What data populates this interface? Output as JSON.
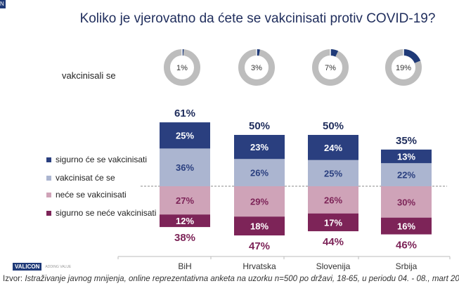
{
  "logo_fragment": "N",
  "chart_data": {
    "type": "bar",
    "title": "Koliko je vjerovatno da ćete se vakcinisati protiv COVID-19?",
    "categories": [
      "BiH",
      "Hrvatska",
      "Slovenija",
      "Srbija"
    ],
    "positive_totals": [
      61,
      50,
      50,
      35
    ],
    "negative_totals": [
      38,
      47,
      44,
      46
    ],
    "series": [
      {
        "name": "sigurno će se vakcinisati",
        "values": [
          25,
          23,
          24,
          13
        ],
        "color": "#2a3f7f",
        "side": "positive"
      },
      {
        "name": "vakcinisat će se",
        "values": [
          36,
          26,
          25,
          22
        ],
        "color": "#abb5d0",
        "side": "positive"
      },
      {
        "name": "neće se vakcinisati",
        "values": [
          27,
          29,
          26,
          30
        ],
        "color": "#cfa3b8",
        "side": "negative"
      },
      {
        "name": "sigurno se neće vakcinisati",
        "values": [
          12,
          18,
          17,
          16
        ],
        "color": "#7d2458",
        "side": "negative"
      }
    ],
    "donuts": {
      "label": "vakcinisali se",
      "values": [
        1,
        3,
        7,
        19
      ],
      "fill_color": "#1f3a78",
      "rest_color": "#bdbdbd"
    }
  },
  "footer": {
    "brand": "VALICON",
    "tagline": "ADDING VALUE",
    "source_prefix": "Izvor: ",
    "source_text": "Istraživanje javnog mnijenja, online reprezentativna anketa na uzorku n=500 po državi, 18-65, u periodu 04. - 08., mart 20."
  }
}
